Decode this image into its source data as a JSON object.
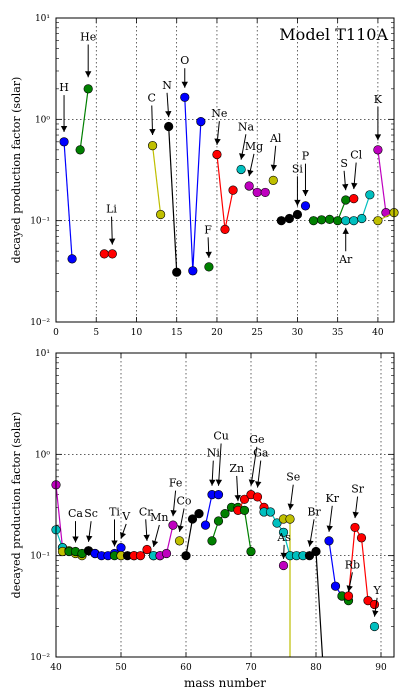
{
  "chart_data": [
    {
      "type": "line",
      "title": "Model T110A",
      "xlabel": "",
      "ylabel": "decayed production factor (solar)",
      "xlim": [
        0,
        42
      ],
      "ylim": [
        0.01,
        10
      ],
      "yscale": "log",
      "grid": true,
      "xticks": [
        "0",
        "5",
        "10",
        "15",
        "20",
        "25",
        "30",
        "35",
        "40"
      ],
      "yticks": [
        "10⁻²",
        "10⁻¹",
        "10⁰",
        "10¹"
      ],
      "series": [
        {
          "color": "#0000ff",
          "x": [
            1,
            2
          ],
          "y": [
            0.6,
            0.042
          ]
        },
        {
          "color": "#008000",
          "x": [
            3,
            4
          ],
          "y": [
            0.5,
            2.0
          ]
        },
        {
          "color": "#ff0000",
          "x": [
            6,
            7
          ],
          "y": [
            0.047,
            0.047
          ]
        },
        {
          "color": "#bfbf00",
          "x": [
            12,
            13
          ],
          "y": [
            0.55,
            0.115
          ]
        },
        {
          "color": "#000000",
          "x": [
            14,
            15
          ],
          "y": [
            0.85,
            0.031
          ]
        },
        {
          "color": "#0000ff",
          "x": [
            16,
            17,
            18
          ],
          "y": [
            1.65,
            0.032,
            0.95
          ]
        },
        {
          "color": "#008000",
          "x": [
            19
          ],
          "y": [
            0.035
          ]
        },
        {
          "color": "#ff0000",
          "x": [
            20,
            21,
            22
          ],
          "y": [
            0.45,
            0.082,
            0.2
          ]
        },
        {
          "color": "#00bfbf",
          "x": [
            23
          ],
          "y": [
            0.32
          ]
        },
        {
          "color": "#bf00bf",
          "x": [
            24,
            25,
            26
          ],
          "y": [
            0.22,
            0.19,
            0.19
          ]
        },
        {
          "color": "#bfbf00",
          "x": [
            27
          ],
          "y": [
            0.25
          ]
        },
        {
          "color": "#000000",
          "x": [
            28,
            29,
            30
          ],
          "y": [
            0.1,
            0.105,
            0.115
          ]
        },
        {
          "color": "#0000ff",
          "x": [
            31
          ],
          "y": [
            0.14
          ]
        },
        {
          "color": "#008000",
          "x": [
            32,
            33,
            34,
            35,
            36
          ],
          "y": [
            0.1,
            0.102,
            0.103,
            0.1,
            0.16
          ]
        },
        {
          "color": "#ff0000",
          "x": [
            37
          ],
          "y": [
            0.165
          ]
        },
        {
          "color": "#00bfbf",
          "x": [
            36,
            37,
            38,
            39
          ],
          "y": [
            0.1,
            0.1,
            0.105,
            0.18
          ]
        },
        {
          "color": "#bf00bf",
          "x": [
            40,
            41
          ],
          "y": [
            0.5,
            0.12
          ]
        },
        {
          "color": "#bfbf00",
          "x": [
            40,
            42
          ],
          "y": [
            0.1,
            0.12
          ]
        }
      ],
      "annotations": [
        {
          "text": "H",
          "x": 1,
          "y": 0.6,
          "label_x": 1.0,
          "label_y": 1.9,
          "tip_y": 0.75
        },
        {
          "text": "He",
          "x": 4,
          "y": 2.0,
          "label_x": 4.0,
          "label_y": 6.0,
          "tip_y": 2.6
        },
        {
          "text": "Li",
          "x": 7,
          "y": 0.047,
          "label_x": 6.9,
          "label_y": 0.12,
          "tip_y": 0.058
        },
        {
          "text": "C",
          "x": 12,
          "y": 0.55,
          "label_x": 11.9,
          "label_y": 1.5,
          "tip_y": 0.7
        },
        {
          "text": "N",
          "x": 14,
          "y": 0.85,
          "label_x": 13.8,
          "label_y": 2.0,
          "tip_y": 1.05
        },
        {
          "text": "O",
          "x": 16,
          "y": 1.65,
          "label_x": 16.0,
          "label_y": 3.5,
          "tip_y": 2.05
        },
        {
          "text": "F",
          "x": 19,
          "y": 0.035,
          "label_x": 18.9,
          "label_y": 0.075,
          "tip_y": 0.043
        },
        {
          "text": "Ne",
          "x": 20,
          "y": 0.45,
          "label_x": 20.3,
          "label_y": 1.05,
          "tip_y": 0.56
        },
        {
          "text": "Na",
          "x": 23,
          "y": 0.32,
          "label_x": 23.6,
          "label_y": 0.78,
          "tip_y": 0.4
        },
        {
          "text": "Mg",
          "x": 24,
          "y": 0.22,
          "label_x": 24.6,
          "label_y": 0.5,
          "tip_y": 0.275
        },
        {
          "text": "Al",
          "x": 27,
          "y": 0.25,
          "label_x": 27.3,
          "label_y": 0.6,
          "tip_y": 0.31
        },
        {
          "text": "Si",
          "x": 30,
          "y": 0.115,
          "label_x": 30.0,
          "label_y": 0.3,
          "tip_y": 0.14
        },
        {
          "text": "P",
          "x": 31,
          "y": 0.14,
          "label_x": 31.0,
          "label_y": 0.4,
          "tip_y": 0.175
        },
        {
          "text": "S",
          "x": 36,
          "y": 0.16,
          "label_x": 35.8,
          "label_y": 0.34,
          "tip_y": 0.2
        },
        {
          "text": "Cl",
          "x": 37,
          "y": 0.165,
          "label_x": 37.3,
          "label_y": 0.41,
          "tip_y": 0.205
        },
        {
          "text": "Ar",
          "x": 36,
          "y": 0.1,
          "label_x": 36.0,
          "label_y": 0.038,
          "tip_y": 0.085,
          "below": true
        },
        {
          "text": "K",
          "x": 40,
          "y": 0.5,
          "label_x": 40.0,
          "label_y": 1.45,
          "tip_y": 0.62
        }
      ]
    },
    {
      "type": "line",
      "title": "",
      "xlabel": "mass number",
      "ylabel": "decayed production factor (solar)",
      "xlim": [
        40,
        92
      ],
      "ylim": [
        0.01,
        10
      ],
      "yscale": "log",
      "grid": true,
      "xticks": [
        "40",
        "50",
        "60",
        "70",
        "80",
        "90"
      ],
      "yticks": [
        "10⁻²",
        "10⁻¹",
        "10⁰",
        "10¹"
      ],
      "series": [
        {
          "color": "#bf00bf",
          "x": [
            40,
            41
          ],
          "y": [
            0.5,
            0.12
          ]
        },
        {
          "color": "#00bfbf",
          "x": [
            40,
            41
          ],
          "y": [
            0.18,
            0.12
          ]
        },
        {
          "color": "#bfbf00",
          "x": [
            41,
            42,
            43,
            44
          ],
          "y": [
            0.11,
            0.112,
            0.105,
            0.1
          ]
        },
        {
          "color": "#008000",
          "x": [
            42,
            43,
            44,
            46
          ],
          "y": [
            0.11,
            0.11,
            0.105,
            0.105
          ]
        },
        {
          "color": "#000000",
          "x": [
            45
          ],
          "y": [
            0.112
          ]
        },
        {
          "color": "#0000ff",
          "x": [
            46,
            47,
            48,
            49,
            50
          ],
          "y": [
            0.105,
            0.1,
            0.1,
            0.105,
            0.12
          ]
        },
        {
          "color": "#008000",
          "x": [
            49,
            50
          ],
          "y": [
            0.1,
            0.1
          ]
        },
        {
          "color": "#bfbf00",
          "x": [
            50
          ],
          "y": [
            0.1
          ]
        },
        {
          "color": "#000000",
          "x": [
            51,
            52
          ],
          "y": [
            0.1,
            0.1
          ]
        },
        {
          "color": "#ff0000",
          "x": [
            52,
            53,
            54,
            55
          ],
          "y": [
            0.1,
            0.1,
            0.115,
            0.1
          ]
        },
        {
          "color": "#00bfbf",
          "x": [
            55,
            56
          ],
          "y": [
            0.1,
            0.1
          ]
        },
        {
          "color": "#bf00bf",
          "x": [
            56,
            57,
            58
          ],
          "y": [
            0.1,
            0.105,
            0.2
          ]
        },
        {
          "color": "#bfbf00",
          "x": [
            59
          ],
          "y": [
            0.14
          ]
        },
        {
          "color": "#000000",
          "x": [
            60,
            61,
            62
          ],
          "y": [
            0.1,
            0.23,
            0.26
          ]
        },
        {
          "color": "#0000ff",
          "x": [
            63,
            64,
            65
          ],
          "y": [
            0.2,
            0.4,
            0.4
          ]
        },
        {
          "color": "#008000",
          "x": [
            64,
            65,
            66,
            67,
            68
          ],
          "y": [
            0.14,
            0.22,
            0.26,
            0.3,
            0.3
          ]
        },
        {
          "color": "#ff0000",
          "x": [
            68,
            69,
            70,
            71,
            72
          ],
          "y": [
            0.28,
            0.36,
            0.4,
            0.38,
            0.3
          ]
        },
        {
          "color": "#00bfbf",
          "x": [
            72,
            73,
            74,
            75,
            76
          ],
          "y": [
            0.27,
            0.27,
            0.21,
            0.17,
            0.1
          ]
        },
        {
          "color": "#008000",
          "x": [
            69,
            70
          ],
          "y": [
            0.28,
            0.11
          ]
        },
        {
          "color": "#bfbf00",
          "x": [
            75,
            76,
            76
          ],
          "y": [
            0.23,
            0.23,
            0.01
          ]
        },
        {
          "color": "#bf00bf",
          "x": [
            75
          ],
          "y": [
            0.08
          ]
        },
        {
          "color": "#00bfbf",
          "x": [
            76,
            77,
            78
          ],
          "y": [
            0.1,
            0.1,
            0.1
          ]
        },
        {
          "color": "#000000",
          "x": [
            79,
            80,
            81
          ],
          "y": [
            0.1,
            0.11,
            0.01
          ]
        },
        {
          "color": "#0000ff",
          "x": [
            82,
            83,
            84
          ],
          "y": [
            0.14,
            0.05,
            0.04
          ]
        },
        {
          "color": "#008000",
          "x": [
            84,
            85
          ],
          "y": [
            0.04,
            0.036
          ]
        },
        {
          "color": "#ff0000",
          "x": [
            85,
            86,
            87,
            88,
            89
          ],
          "y": [
            0.04,
            0.19,
            0.15,
            0.036,
            0.033
          ]
        },
        {
          "color": "#00bfbf",
          "x": [
            89
          ],
          "y": [
            0.02
          ]
        }
      ],
      "annotations": [
        {
          "text": "Ca",
          "x": 43,
          "y": 0.11,
          "label_x": 43.0,
          "label_y": 0.24,
          "tip_y": 0.135
        },
        {
          "text": "Sc",
          "x": 45,
          "y": 0.112,
          "label_x": 45.4,
          "label_y": 0.24,
          "tip_y": 0.137
        },
        {
          "text": "Ti",
          "x": 49,
          "y": 0.1,
          "label_x": 49.0,
          "label_y": 0.25,
          "tip_y": 0.123
        },
        {
          "text": "V",
          "x": 50,
          "y": 0.12,
          "label_x": 50.8,
          "label_y": 0.225,
          "tip_y": 0.147
        },
        {
          "text": "Cr",
          "x": 54,
          "y": 0.115,
          "label_x": 53.8,
          "label_y": 0.25,
          "tip_y": 0.14
        },
        {
          "text": "Mn",
          "x": 55,
          "y": 0.1,
          "label_x": 55.9,
          "label_y": 0.22,
          "tip_y": 0.122
        },
        {
          "text": "Fe",
          "x": 58,
          "y": 0.2,
          "label_x": 58.4,
          "label_y": 0.48,
          "tip_y": 0.245
        },
        {
          "text": "Co",
          "x": 59,
          "y": 0.14,
          "label_x": 59.7,
          "label_y": 0.32,
          "tip_y": 0.172
        },
        {
          "text": "Ni",
          "x": 64,
          "y": 0.4,
          "label_x": 64.2,
          "label_y": 0.95,
          "tip_y": 0.49
        },
        {
          "text": "Cu",
          "x": 65,
          "y": 0.4,
          "label_x": 65.4,
          "label_y": 1.4,
          "tip_y": 0.49
        },
        {
          "text": "Zn",
          "x": 68,
          "y": 0.28,
          "label_x": 67.8,
          "label_y": 0.67,
          "tip_y": 0.345
        },
        {
          "text": "Ge",
          "x": 70,
          "y": 0.4,
          "label_x": 70.9,
          "label_y": 1.3,
          "tip_y": 0.49
        },
        {
          "text": "Ga",
          "x": 71,
          "y": 0.38,
          "label_x": 71.5,
          "label_y": 0.95,
          "tip_y": 0.47
        },
        {
          "text": "Se",
          "x": 76,
          "y": 0.23,
          "label_x": 76.5,
          "label_y": 0.55,
          "tip_y": 0.283
        },
        {
          "text": "As",
          "x": 75,
          "y": 0.08,
          "label_x": 75.1,
          "label_y": 0.14,
          "tip_y": 0.093
        },
        {
          "text": "Br",
          "x": 79,
          "y": 0.1,
          "label_x": 79.7,
          "label_y": 0.25,
          "tip_y": 0.123
        },
        {
          "text": "Kr",
          "x": 82,
          "y": 0.14,
          "label_x": 82.5,
          "label_y": 0.34,
          "tip_y": 0.172
        },
        {
          "text": "Sr",
          "x": 86,
          "y": 0.19,
          "label_x": 86.4,
          "label_y": 0.42,
          "tip_y": 0.235
        },
        {
          "text": "Rb",
          "x": 85,
          "y": 0.036,
          "label_x": 85.6,
          "label_y": 0.075,
          "tip_y": 0.044
        },
        {
          "text": "Y",
          "x": 89,
          "y": 0.02,
          "label_x": 89.4,
          "label_y": 0.042,
          "tip_y": 0.025
        }
      ]
    }
  ]
}
